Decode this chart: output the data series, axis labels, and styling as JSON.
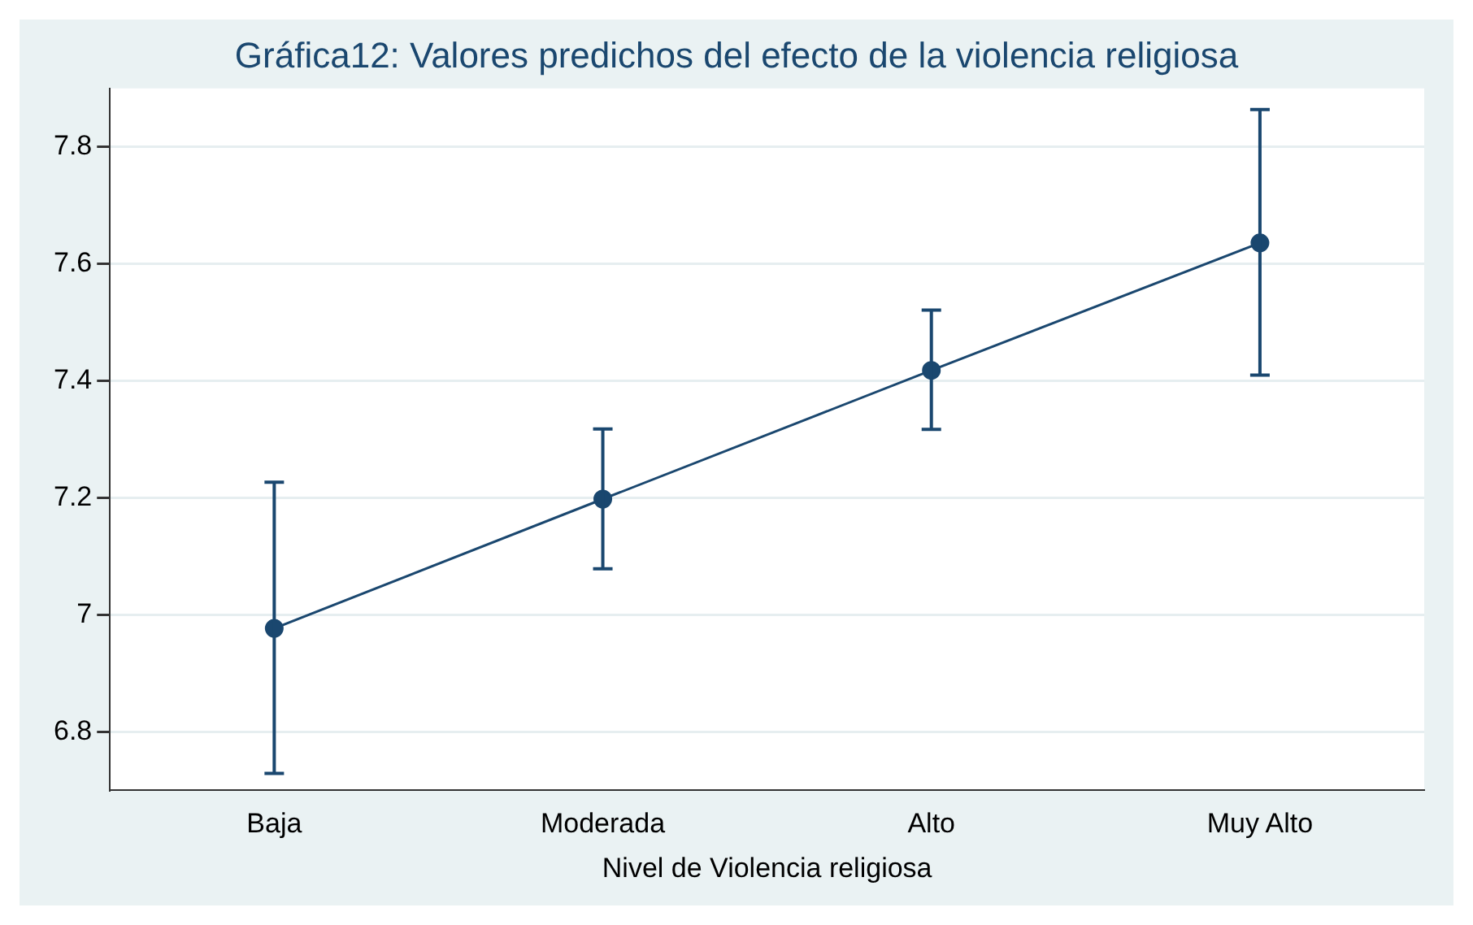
{
  "chart_data": {
    "type": "line",
    "title": "Gráfica12: Valores predichos del efecto de la violencia religiosa",
    "xlabel": "Nivel de Violencia religiosa",
    "categories": [
      "Baja",
      "Moderada",
      "Alto",
      "Muy Alto"
    ],
    "values": [
      6.977,
      7.198,
      7.418,
      7.636
    ],
    "errors": [
      [
        6.729,
        7.227
      ],
      [
        7.079,
        7.318
      ],
      [
        7.317,
        7.521
      ],
      [
        7.41,
        7.864
      ]
    ],
    "color": "#1a476f",
    "marker": "circle",
    "ylim": [
      6.7,
      7.9
    ],
    "yticks": [
      6.8,
      7,
      7.2,
      7.4,
      7.6,
      7.8
    ],
    "grid": "y",
    "legend": false
  }
}
